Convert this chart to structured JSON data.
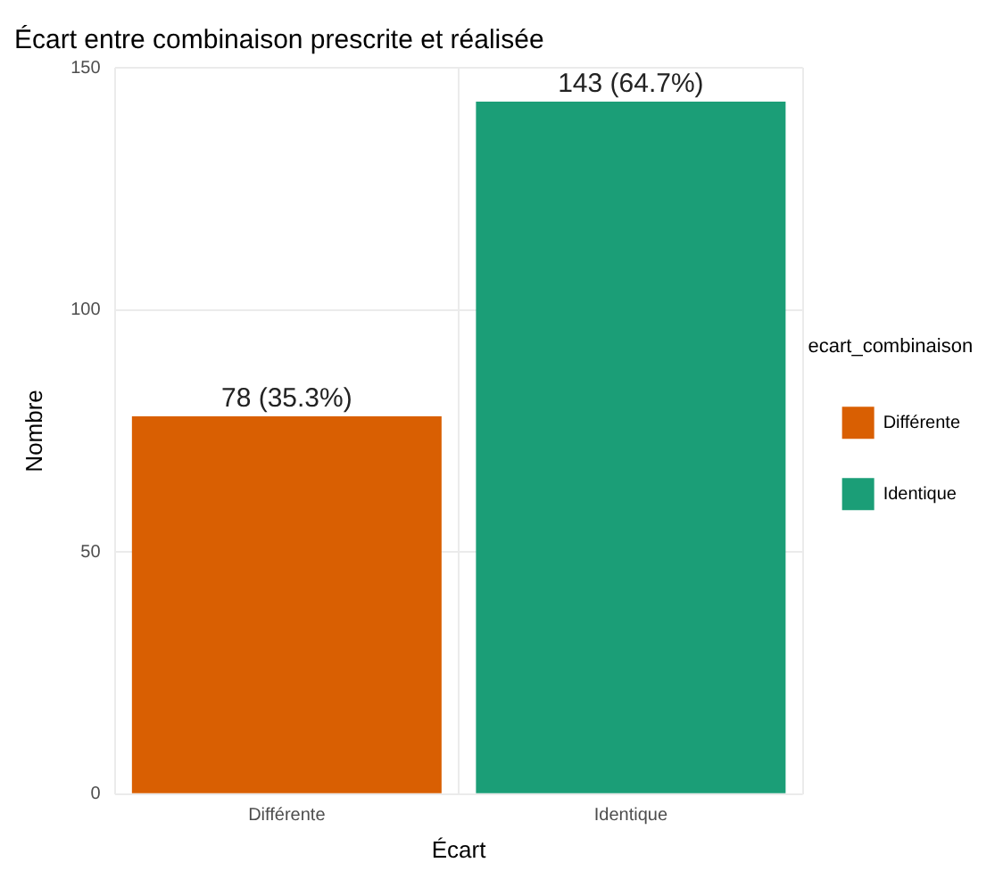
{
  "chart_data": {
    "type": "bar",
    "title": "Écart entre combinaison prescrite et réalisée",
    "xlabel": "Écart",
    "ylabel": "Nombre",
    "legend_title": "ecart_combinaison",
    "categories": [
      "Différente",
      "Identique"
    ],
    "series": [
      {
        "name": "Différente",
        "color": "#d95f02",
        "values": [
          78,
          null
        ],
        "value_labels": [
          "78 (35.3%)",
          null
        ]
      },
      {
        "name": "Identique",
        "color": "#1b9e77",
        "values": [
          null,
          143
        ],
        "value_labels": [
          null,
          "143 (64.7%)"
        ]
      }
    ],
    "ylim": [
      0,
      150
    ],
    "yticks": [
      0,
      50,
      100,
      150
    ],
    "grid": true,
    "legend": "right"
  }
}
